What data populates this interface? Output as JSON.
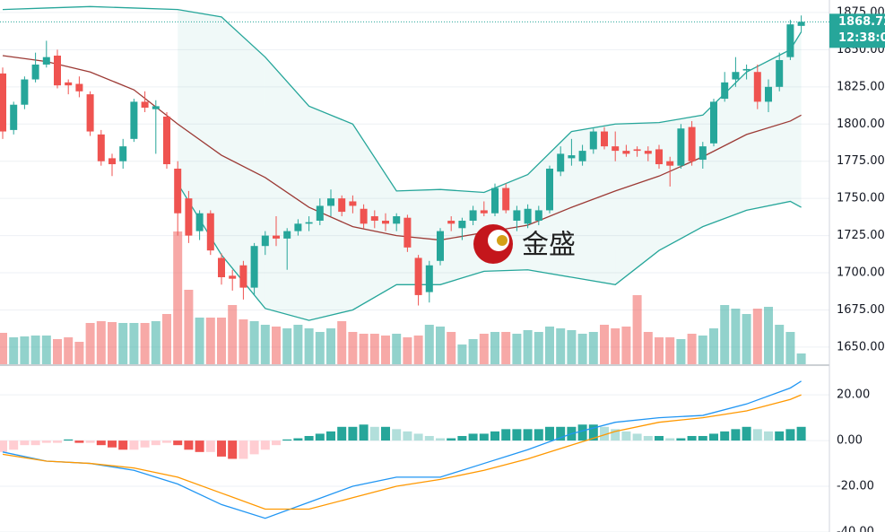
{
  "chart_data": [
    {
      "type": "candlestick",
      "watermark": "金盛",
      "countdown": "12:38:0",
      "ylim": [
        1638.5,
        1883.4
      ],
      "yticks": [
        {
          "value": 1650,
          "label": "1650.00"
        },
        {
          "value": 1675,
          "label": "1675.00"
        },
        {
          "value": 1700,
          "label": "1700.00"
        },
        {
          "value": 1725,
          "label": "1725.00"
        },
        {
          "value": 1750,
          "label": "1750.00"
        },
        {
          "value": 1775,
          "label": "1775.00"
        },
        {
          "value": 1800,
          "label": "1800.00"
        },
        {
          "value": 1825,
          "label": "1825.00"
        },
        {
          "value": 1850,
          "label": "1850.00"
        },
        {
          "value": 1875,
          "label": "1875.00"
        }
      ],
      "grid": true,
      "up_color": "#26a69a",
      "down_color": "#ef5350",
      "open": [
        1834,
        1796,
        1813,
        1830,
        1840,
        1846,
        1828,
        1827,
        1820,
        1793,
        1777,
        1775,
        1790,
        1815,
        1810,
        1805,
        1770,
        1750,
        1728,
        1740,
        1710,
        1698,
        1705,
        1690,
        1718,
        1725,
        1723,
        1728,
        1733,
        1735,
        1745,
        1750,
        1748,
        1743,
        1738,
        1735,
        1733,
        1737,
        1710,
        1687,
        1708,
        1735,
        1730,
        1735,
        1742,
        1740,
        1757,
        1735,
        1733,
        1735,
        1742,
        1768,
        1777,
        1775,
        1783,
        1795,
        1785,
        1782,
        1783,
        1782,
        1783,
        1775,
        1772,
        1798,
        1776,
        1787,
        1817,
        1830,
        1836,
        1835,
        1815,
        1825,
        1845,
        1866
      ],
      "high": [
        1838,
        1815,
        1832,
        1848,
        1856,
        1850,
        1830,
        1832,
        1822,
        1796,
        1780,
        1790,
        1817,
        1822,
        1816,
        1808,
        1775,
        1755,
        1742,
        1742,
        1713,
        1702,
        1708,
        1720,
        1728,
        1738,
        1730,
        1736,
        1738,
        1750,
        1756,
        1752,
        1752,
        1746,
        1742,
        1740,
        1740,
        1739,
        1712,
        1708,
        1730,
        1738,
        1737,
        1745,
        1748,
        1760,
        1760,
        1745,
        1746,
        1745,
        1772,
        1785,
        1790,
        1786,
        1797,
        1798,
        1795,
        1786,
        1785,
        1785,
        1786,
        1778,
        1800,
        1802,
        1788,
        1817,
        1835,
        1845,
        1840,
        1840,
        1830,
        1848,
        1870,
        1873
      ],
      "low": [
        1790,
        1793,
        1810,
        1828,
        1838,
        1824,
        1820,
        1818,
        1792,
        1772,
        1765,
        1770,
        1788,
        1808,
        1780,
        1770,
        1725,
        1720,
        1722,
        1712,
        1692,
        1688,
        1682,
        1685,
        1712,
        1718,
        1702,
        1725,
        1728,
        1732,
        1738,
        1738,
        1740,
        1730,
        1730,
        1728,
        1728,
        1714,
        1678,
        1680,
        1705,
        1728,
        1722,
        1732,
        1738,
        1738,
        1740,
        1728,
        1730,
        1732,
        1740,
        1765,
        1772,
        1772,
        1780,
        1783,
        1775,
        1778,
        1778,
        1775,
        1770,
        1758,
        1770,
        1772,
        1770,
        1785,
        1815,
        1825,
        1830,
        1810,
        1808,
        1822,
        1843,
        1862
      ],
      "close": [
        1795,
        1813,
        1830,
        1840,
        1845,
        1826,
        1826,
        1822,
        1795,
        1775,
        1773,
        1785,
        1815,
        1811,
        1812,
        1773,
        1740,
        1725,
        1740,
        1715,
        1697,
        1696,
        1690,
        1718,
        1725,
        1723,
        1728,
        1733,
        1734,
        1745,
        1750,
        1741,
        1745,
        1733,
        1735,
        1733,
        1738,
        1717,
        1685,
        1705,
        1728,
        1733,
        1735,
        1742,
        1740,
        1757,
        1742,
        1742,
        1743,
        1742,
        1770,
        1780,
        1779,
        1782,
        1795,
        1785,
        1782,
        1780,
        1782,
        1780,
        1773,
        1772,
        1797,
        1775,
        1785,
        1815,
        1828,
        1835,
        1837,
        1815,
        1825,
        1843,
        1867,
        1868.72
      ],
      "volume": [
        35,
        30,
        31,
        32,
        32,
        28,
        30,
        25,
        46,
        48,
        47,
        46,
        46,
        46,
        48,
        56,
        148,
        83,
        52,
        52,
        52,
        66,
        50,
        48,
        44,
        42,
        40,
        44,
        40,
        36,
        40,
        48,
        36,
        34,
        34,
        32,
        34,
        30,
        32,
        44,
        42,
        36,
        22,
        28,
        34,
        36,
        36,
        34,
        38,
        36,
        42,
        40,
        38,
        34,
        36,
        44,
        40,
        42,
        77,
        36,
        30,
        30,
        28,
        34,
        32,
        40,
        66,
        62,
        56,
        62,
        64,
        44,
        36,
        12
      ],
      "line_x": [
        0,
        4,
        8,
        12,
        16,
        20,
        24,
        28,
        32,
        36,
        40,
        44,
        48,
        52,
        56,
        60,
        64,
        68,
        72,
        73
      ],
      "lines": [
        {
          "color": "#26a69a",
          "values": [
            1877,
            1878,
            1879,
            1878,
            1877,
            1872,
            1845,
            1812,
            1800,
            1755,
            1756,
            1754,
            1766,
            1795,
            1800,
            1801,
            1806,
            1835,
            1850,
            1862
          ]
        },
        {
          "color": "#9c3a35",
          "values": [
            1846,
            1842,
            1835,
            1823,
            1800,
            1779,
            1764,
            1744,
            1731,
            1725,
            1722,
            1727,
            1732,
            1744,
            1755,
            1765,
            1778,
            1793,
            1802,
            1806
          ]
        },
        {
          "color": "#26a69a",
          "values": [
            null,
            null,
            null,
            null,
            1760,
            1712,
            1676,
            1668,
            1675,
            1692,
            1692,
            1701,
            1702,
            1697,
            1692,
            1715,
            1731,
            1742,
            1748,
            1744
          ]
        }
      ]
    },
    {
      "type": "macd",
      "ylim": [
        -40,
        33
      ],
      "yticks": [
        {
          "value": 20,
          "label": "20.00"
        },
        {
          "value": 0,
          "label": "0.00"
        },
        {
          "value": -20,
          "label": "-20.00"
        },
        {
          "value": -40,
          "label": "-40.00"
        }
      ],
      "histogram": [
        -5,
        -4,
        -2,
        -2,
        -1,
        -1,
        0.5,
        -1,
        -1,
        -2,
        -3,
        -4,
        -4,
        -3,
        -2,
        -1,
        -2,
        -4,
        -5,
        -5,
        -7,
        -8,
        -8,
        -6,
        -4,
        -2,
        0.5,
        1,
        2,
        3,
        4,
        6,
        6,
        7,
        6,
        6,
        5,
        4,
        3,
        2,
        1,
        1,
        2,
        3,
        3,
        4,
        5,
        5,
        5,
        5,
        6,
        6,
        6,
        7,
        7,
        6,
        5,
        4,
        3,
        2,
        2,
        1,
        1,
        2,
        2,
        3,
        4,
        5,
        6,
        5,
        4,
        4,
        5,
        6
      ],
      "line_x": [
        0,
        4,
        8,
        12,
        16,
        20,
        24,
        28,
        32,
        36,
        40,
        44,
        48,
        52,
        56,
        60,
        64,
        68,
        72,
        73
      ],
      "lines": [
        {
          "color": "#2196f3",
          "values": [
            -5,
            -9,
            -10,
            -13,
            -19,
            -28,
            -34,
            -27,
            -20,
            -16,
            -16,
            -10,
            -4,
            3,
            8,
            10,
            11,
            16,
            23,
            26
          ]
        },
        {
          "color": "#ff9800",
          "values": [
            -6,
            -9,
            -10,
            -12,
            -16,
            -23,
            -30,
            -30,
            -25,
            -20,
            -17,
            -13,
            -8,
            -2,
            4,
            8,
            10,
            13,
            18,
            20
          ]
        }
      ]
    }
  ]
}
